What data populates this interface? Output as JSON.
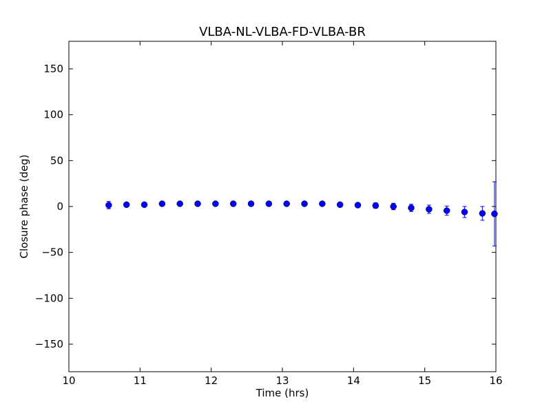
{
  "chart_data": {
    "type": "errorbar",
    "title": "VLBA-NL-VLBA-FD-VLBA-BR",
    "x_label": "Time (hrs)",
    "y_label": "Closure phase (deg)",
    "x": [
      10.56,
      10.81,
      11.06,
      11.31,
      11.56,
      11.81,
      12.06,
      12.31,
      12.56,
      12.81,
      13.06,
      13.31,
      13.56,
      13.81,
      14.06,
      14.31,
      14.56,
      14.81,
      15.06,
      15.31,
      15.56,
      15.81,
      15.98
    ],
    "values": [
      1.5,
      2,
      2,
      3,
      3,
      3,
      3,
      3,
      3,
      3,
      3,
      3,
      3,
      2,
      1.5,
      1,
      0,
      -1.5,
      -3,
      -4.5,
      -6,
      -7.5,
      -8
    ],
    "errors": [
      4,
      1,
      1,
      1,
      1,
      1,
      1,
      1,
      1,
      1,
      1,
      1,
      1.5,
      2,
      2.5,
      3,
      3.5,
      4,
      4.5,
      5,
      6,
      7.5,
      35
    ],
    "color": "#0000ff",
    "xlim": [
      10,
      16
    ],
    "xticks": [
      10,
      11,
      12,
      13,
      14,
      15,
      16
    ],
    "ylim": [
      -180,
      180
    ],
    "yticks": [
      {
        "value": -150,
        "label": "−150"
      },
      {
        "value": -100,
        "label": "−100"
      },
      {
        "value": -50,
        "label": "−50"
      },
      0,
      50,
      100,
      150
    ],
    "grid": false
  }
}
